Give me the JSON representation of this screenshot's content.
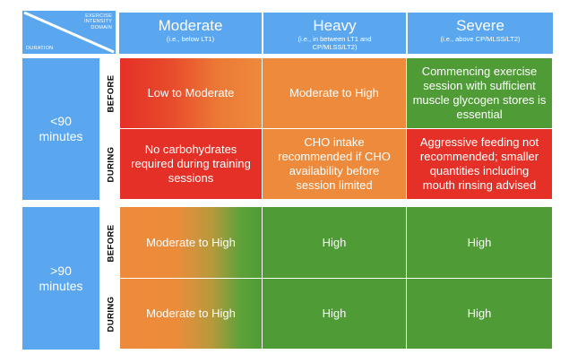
{
  "corner": {
    "intensity_label_lines": [
      "EXERCISE",
      "INTENSITY",
      "DOMAIN"
    ],
    "duration_label": "DURATION"
  },
  "columns": [
    {
      "title": "Moderate",
      "subtitle_lines": [
        "(i.e., below LT1)"
      ]
    },
    {
      "title": "Heavy",
      "subtitle_lines": [
        "(i.e., in between LT1 and",
        "CP/MLSS/LT2)"
      ]
    },
    {
      "title": "Severe",
      "subtitle_lines": [
        "(i.e., above CP/MLSS/LT2)"
      ]
    }
  ],
  "durations": [
    {
      "label_lines": [
        "<90",
        "minutes"
      ]
    },
    {
      "label_lines": [
        ">90",
        "minutes"
      ]
    }
  ],
  "phases": {
    "before": "BEFORE",
    "during": "DURING"
  },
  "cells": {
    "short_before": [
      "Low to Moderate",
      "Moderate to High",
      "Commencing exercise session with sufficient muscle glycogen stores is essential"
    ],
    "short_during": [
      "No carbohydrates required during training sessions",
      "CHO intake recommended if CHO availability before session limited",
      "Aggressive feeding not recommended; smaller quantities including mouth rinsing advised"
    ],
    "long_before": [
      "Moderate to High",
      "High",
      "High"
    ],
    "long_during": [
      "Moderate to High",
      "High",
      "High"
    ]
  },
  "colors": {
    "header_blue": "#5aa7f0",
    "red": "#e53027",
    "orange": "#ee8a3b",
    "green": "#4f9c36"
  }
}
